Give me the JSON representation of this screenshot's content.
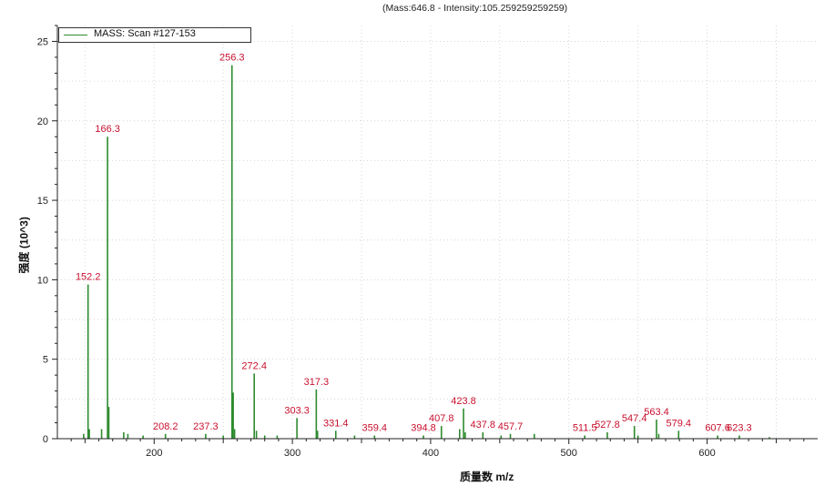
{
  "header_note": "(Mass:646.8 - Intensity:105.259259259259)",
  "legend": {
    "label": "MASS: Scan #127-153"
  },
  "colors": {
    "series": "#2e8b2e",
    "peak_label": "#c8102e",
    "axis": "#222222",
    "grid": "#d6d6d6"
  },
  "chart_data": {
    "type": "bar",
    "title": "",
    "xlabel": "质量数 m/z",
    "ylabel": "强度 (10^3)",
    "xlim": [
      130,
      680
    ],
    "ylim": [
      0,
      26
    ],
    "x_ticks": [
      200,
      300,
      400,
      500,
      600
    ],
    "y_ticks": [
      0,
      5,
      10,
      15,
      20,
      25
    ],
    "grid": true,
    "legend_position": "top-left",
    "series": [
      {
        "name": "MASS: Scan #127-153",
        "points": [
          [
            152.2,
            9.7
          ],
          [
            153.1,
            0.6
          ],
          [
            149.0,
            0.3
          ],
          [
            162.0,
            0.6
          ],
          [
            166.3,
            19.0
          ],
          [
            167.2,
            2.0
          ],
          [
            178.0,
            0.4
          ],
          [
            181.0,
            0.3
          ],
          [
            192.0,
            0.2
          ],
          [
            208.2,
            0.3
          ],
          [
            237.3,
            0.3
          ],
          [
            250.0,
            0.2
          ],
          [
            256.3,
            23.5
          ],
          [
            257.2,
            2.9
          ],
          [
            258.2,
            0.6
          ],
          [
            272.4,
            4.1
          ],
          [
            274.0,
            0.5
          ],
          [
            280.0,
            0.2
          ],
          [
            289.0,
            0.2
          ],
          [
            303.3,
            1.3
          ],
          [
            317.3,
            3.1
          ],
          [
            318.2,
            0.5
          ],
          [
            331.4,
            0.5
          ],
          [
            345.0,
            0.2
          ],
          [
            359.4,
            0.2
          ],
          [
            394.8,
            0.2
          ],
          [
            407.8,
            0.8
          ],
          [
            421.0,
            0.6
          ],
          [
            423.8,
            1.9
          ],
          [
            425.0,
            0.4
          ],
          [
            437.8,
            0.4
          ],
          [
            451.0,
            0.2
          ],
          [
            457.7,
            0.3
          ],
          [
            475.0,
            0.3
          ],
          [
            511.5,
            0.2
          ],
          [
            527.8,
            0.4
          ],
          [
            547.4,
            0.8
          ],
          [
            550.0,
            0.2
          ],
          [
            563.4,
            1.2
          ],
          [
            565.0,
            0.3
          ],
          [
            579.4,
            0.5
          ],
          [
            607.6,
            0.2
          ],
          [
            623.3,
            0.2
          ],
          [
            645.0,
            0.1
          ]
        ]
      }
    ],
    "peak_labels": [
      {
        "x": 152.2,
        "y": 9.7,
        "text": "152.2"
      },
      {
        "x": 166.3,
        "y": 19.0,
        "text": "166.3"
      },
      {
        "x": 208.2,
        "y": 0.3,
        "text": "208.2"
      },
      {
        "x": 237.3,
        "y": 0.3,
        "text": "237.3"
      },
      {
        "x": 256.3,
        "y": 23.5,
        "text": "256.3"
      },
      {
        "x": 272.4,
        "y": 4.1,
        "text": "272.4"
      },
      {
        "x": 303.3,
        "y": 1.3,
        "text": "303.3"
      },
      {
        "x": 317.3,
        "y": 3.1,
        "text": "317.3"
      },
      {
        "x": 331.4,
        "y": 0.5,
        "text": "331.4"
      },
      {
        "x": 359.4,
        "y": 0.2,
        "text": "359.4"
      },
      {
        "x": 394.8,
        "y": 0.2,
        "text": "394.8"
      },
      {
        "x": 407.8,
        "y": 0.8,
        "text": "407.8"
      },
      {
        "x": 423.8,
        "y": 1.9,
        "text": "423.8"
      },
      {
        "x": 437.8,
        "y": 0.4,
        "text": "437.8"
      },
      {
        "x": 457.7,
        "y": 0.3,
        "text": "457.7"
      },
      {
        "x": 511.5,
        "y": 0.2,
        "text": "511.5"
      },
      {
        "x": 527.8,
        "y": 0.4,
        "text": "527.8"
      },
      {
        "x": 547.4,
        "y": 0.8,
        "text": "547.4"
      },
      {
        "x": 563.4,
        "y": 1.2,
        "text": "563.4"
      },
      {
        "x": 579.4,
        "y": 0.5,
        "text": "579.4"
      },
      {
        "x": 607.6,
        "y": 0.2,
        "text": "607.6"
      },
      {
        "x": 623.3,
        "y": 0.2,
        "text": "623.3"
      }
    ]
  }
}
